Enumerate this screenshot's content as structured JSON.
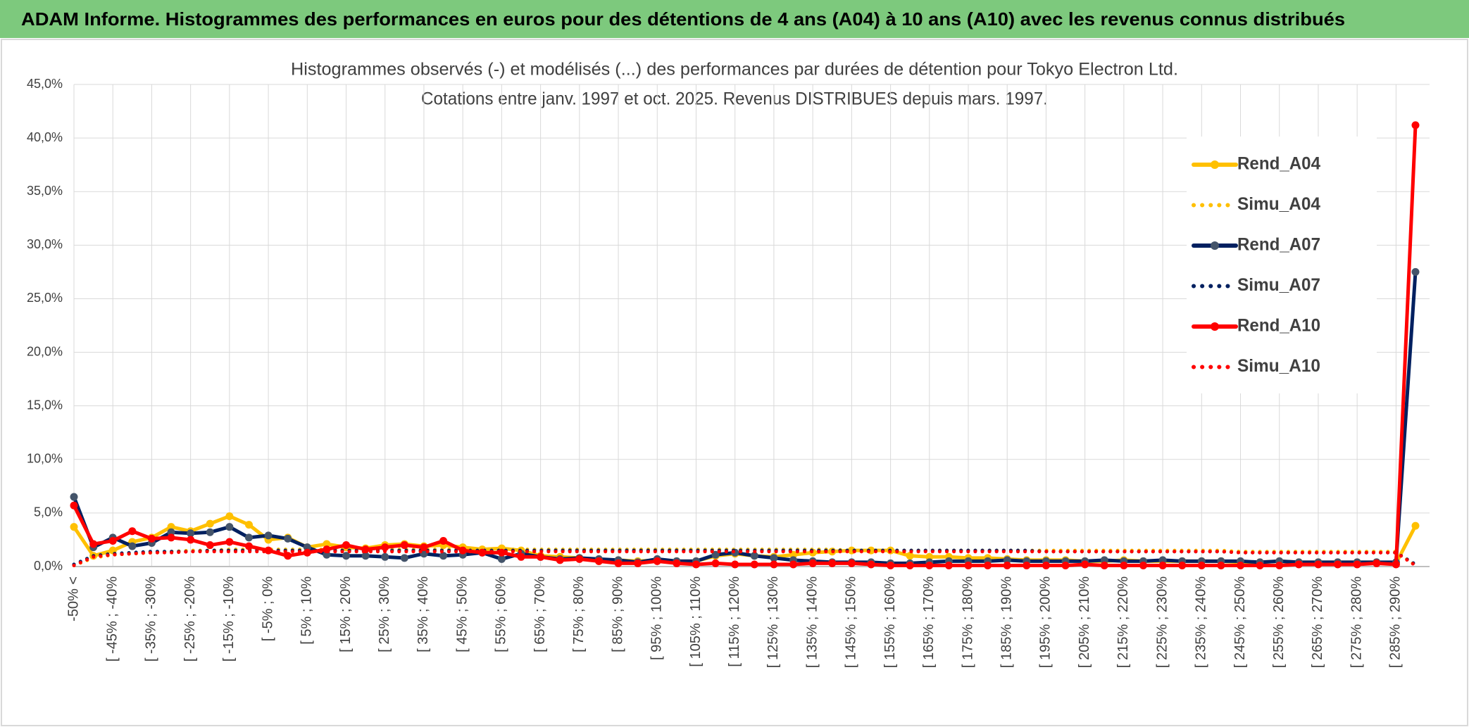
{
  "header": {
    "title": "ADAM Informe. Histogrammes des performances en euros pour des détentions de 4 ans (A04) à 10 ans (A10) avec les revenus connus distribués"
  },
  "chart_data": {
    "type": "line",
    "title": "Histogrammes observés (-) et modélisés (...) des performances par durées de détention pour Tokyo Electron Ltd.",
    "subtitle": "Cotations entre janv. 1997 et oct. 2025. Revenus DISTRIBUES depuis mars. 1997.",
    "categories": [
      "-50% <",
      null,
      "[ -45% ; -40%",
      null,
      "[ -35% ; -30%",
      null,
      "[ -25% ; -20%",
      null,
      "[ -15% ; -10%",
      null,
      "[ -5% ; 0%",
      null,
      "[ 5% ; 10%",
      null,
      "[ 15% ; 20%",
      null,
      "[ 25% ; 30%",
      null,
      "[ 35% ; 40%",
      null,
      "[ 45% ; 50%",
      null,
      "[ 55% ; 60%",
      null,
      "[ 65% ; 70%",
      null,
      "[ 75% ; 80%",
      null,
      "[ 85% ; 90%",
      null,
      "[ 95% ; 100%",
      null,
      "[ 105% ; 110%",
      null,
      "[ 115% ; 120%",
      null,
      "[ 125% ; 130%",
      null,
      "[ 135% ; 140%",
      null,
      "[ 145% ; 150%",
      null,
      "[ 155% ; 160%",
      null,
      "[ 165% ; 170%",
      null,
      "[ 175% ; 180%",
      null,
      "[ 185% ; 190%",
      null,
      "[ 195% ; 200%",
      null,
      "[ 205% ; 210%",
      null,
      "[ 215% ; 220%",
      null,
      "[ 225% ; 230%",
      null,
      "[ 235% ; 240%",
      null,
      "[ 245% ; 250%",
      null,
      "[ 255% ; 260%",
      null,
      "[ 265% ; 270%",
      null,
      "[ 275% ; 280%",
      null,
      "[ 285% ; 290%",
      null
    ],
    "series": [
      {
        "name": "Rend_A04",
        "color": "#FFC000",
        "style": "solid",
        "markers": true,
        "values": [
          3.7,
          1.0,
          1.5,
          2.3,
          2.7,
          3.7,
          3.3,
          4.0,
          4.7,
          3.9,
          2.5,
          2.7,
          1.8,
          2.1,
          1.8,
          1.7,
          2.0,
          2.1,
          1.9,
          2.0,
          1.8,
          1.6,
          1.7,
          1.5,
          1.0,
          0.9,
          0.8,
          0.5,
          0.6,
          0.5,
          0.6,
          0.5,
          0.5,
          1.0,
          1.2,
          1.0,
          0.9,
          1.1,
          1.3,
          1.4,
          1.5,
          1.5,
          1.5,
          1.0,
          0.9,
          0.9,
          0.8,
          0.8,
          0.7,
          0.6,
          0.6,
          0.6,
          0.5,
          0.5,
          0.6,
          0.5,
          0.5,
          0.5,
          0.5,
          0.5,
          0.4,
          0.4,
          0.5,
          0.4,
          0.4,
          0.4,
          0.4,
          0.4,
          0.3,
          3.8
        ]
      },
      {
        "name": "Simu_A04",
        "color": "#FFC000",
        "style": "dotted",
        "markers": false,
        "values": [
          0.1,
          0.8,
          1.1,
          1.2,
          1.3,
          1.4,
          1.5,
          1.5,
          1.6,
          1.6,
          1.6,
          1.6,
          1.6,
          1.6,
          1.6,
          1.6,
          1.6,
          1.6,
          1.6,
          1.6,
          1.6,
          1.6,
          1.6,
          1.6,
          1.6,
          1.6,
          1.6,
          1.6,
          1.6,
          1.6,
          1.6,
          1.6,
          1.6,
          1.6,
          1.6,
          1.6,
          1.6,
          1.6,
          1.6,
          1.6,
          1.5,
          1.5,
          1.5,
          1.5,
          1.5,
          1.5,
          1.5,
          1.5,
          1.5,
          1.5,
          1.5,
          1.5,
          1.5,
          1.5,
          1.5,
          1.5,
          1.5,
          1.5,
          1.5,
          1.5,
          1.4,
          1.4,
          1.4,
          1.4,
          1.4,
          1.4,
          1.4,
          1.4,
          1.4,
          0.1
        ]
      },
      {
        "name": "Rend_A07",
        "color": "#002060",
        "style": "solid",
        "markers": true,
        "values": [
          6.5,
          1.8,
          2.7,
          1.9,
          2.2,
          3.2,
          3.1,
          3.2,
          3.7,
          2.7,
          2.9,
          2.6,
          1.8,
          1.1,
          1.0,
          1.0,
          0.9,
          0.8,
          1.2,
          1.0,
          1.1,
          1.3,
          0.7,
          1.2,
          0.9,
          0.7,
          0.8,
          0.7,
          0.6,
          0.4,
          0.7,
          0.5,
          0.5,
          1.1,
          1.3,
          1.0,
          0.8,
          0.6,
          0.5,
          0.4,
          0.4,
          0.4,
          0.3,
          0.3,
          0.4,
          0.5,
          0.5,
          0.5,
          0.6,
          0.5,
          0.5,
          0.5,
          0.5,
          0.6,
          0.5,
          0.5,
          0.6,
          0.5,
          0.5,
          0.5,
          0.5,
          0.4,
          0.5,
          0.4,
          0.4,
          0.4,
          0.4,
          0.4,
          0.4,
          27.5
        ]
      },
      {
        "name": "Simu_A07",
        "color": "#002060",
        "style": "dotted",
        "markers": false,
        "values": [
          0.2,
          1.0,
          1.2,
          1.3,
          1.4,
          1.4,
          1.4,
          1.5,
          1.5,
          1.5,
          1.5,
          1.5,
          1.5,
          1.5,
          1.5,
          1.5,
          1.5,
          1.5,
          1.5,
          1.5,
          1.5,
          1.5,
          1.5,
          1.5,
          1.5,
          1.5,
          1.5,
          1.5,
          1.5,
          1.5,
          1.5,
          1.5,
          1.5,
          1.5,
          1.5,
          1.5,
          1.5,
          1.5,
          1.5,
          1.5,
          1.5,
          1.5,
          1.5,
          1.5,
          1.5,
          1.5,
          1.5,
          1.5,
          1.5,
          1.5,
          1.4,
          1.4,
          1.4,
          1.4,
          1.4,
          1.4,
          1.4,
          1.4,
          1.4,
          1.4,
          1.3,
          1.3,
          1.3,
          1.3,
          1.3,
          1.3,
          1.3,
          1.3,
          1.3,
          0.2
        ]
      },
      {
        "name": "Rend_A10",
        "color": "#FF0000",
        "style": "solid",
        "markers": true,
        "values": [
          5.7,
          2.1,
          2.4,
          3.3,
          2.6,
          2.7,
          2.5,
          2.0,
          2.3,
          1.9,
          1.5,
          1.0,
          1.3,
          1.6,
          2.0,
          1.6,
          1.8,
          2.0,
          1.8,
          2.4,
          1.5,
          1.3,
          1.3,
          0.9,
          0.9,
          0.6,
          0.7,
          0.5,
          0.3,
          0.3,
          0.5,
          0.3,
          0.2,
          0.3,
          0.2,
          0.2,
          0.2,
          0.2,
          0.3,
          0.3,
          0.3,
          0.2,
          0.1,
          0.1,
          0.1,
          0.1,
          0.1,
          0.1,
          0.1,
          0.1,
          0.1,
          0.1,
          0.2,
          0.1,
          0.1,
          0.1,
          0.1,
          0.1,
          0.1,
          0.1,
          0.1,
          0.1,
          0.1,
          0.2,
          0.2,
          0.2,
          0.2,
          0.3,
          0.2,
          41.2
        ]
      },
      {
        "name": "Simu_A10",
        "color": "#FF0000",
        "style": "dotted",
        "markers": false,
        "values": [
          0.1,
          0.9,
          1.1,
          1.2,
          1.3,
          1.3,
          1.4,
          1.4,
          1.4,
          1.4,
          1.4,
          1.4,
          1.4,
          1.4,
          1.4,
          1.4,
          1.4,
          1.4,
          1.4,
          1.4,
          1.4,
          1.4,
          1.4,
          1.4,
          1.4,
          1.4,
          1.4,
          1.4,
          1.4,
          1.4,
          1.4,
          1.4,
          1.4,
          1.4,
          1.4,
          1.4,
          1.4,
          1.4,
          1.4,
          1.4,
          1.4,
          1.4,
          1.4,
          1.4,
          1.4,
          1.4,
          1.4,
          1.4,
          1.4,
          1.4,
          1.4,
          1.4,
          1.4,
          1.4,
          1.4,
          1.4,
          1.4,
          1.4,
          1.4,
          1.4,
          1.3,
          1.3,
          1.3,
          1.3,
          1.3,
          1.3,
          1.3,
          1.3,
          1.3,
          0.1
        ]
      }
    ],
    "ylim": [
      0,
      45
    ],
    "yticks": [
      {
        "value": 0,
        "label": "0,0%"
      },
      {
        "value": 5,
        "label": "5,0%"
      },
      {
        "value": 10,
        "label": "10,0%"
      },
      {
        "value": 15,
        "label": "15,0%"
      },
      {
        "value": 20,
        "label": "20,0%"
      },
      {
        "value": 25,
        "label": "25,0%"
      },
      {
        "value": 30,
        "label": "30,0%"
      },
      {
        "value": 35,
        "label": "35,0%"
      },
      {
        "value": 40,
        "label": "40,0%"
      },
      {
        "value": 45,
        "label": "45,0%"
      }
    ],
    "grid": true,
    "legend": "right"
  }
}
